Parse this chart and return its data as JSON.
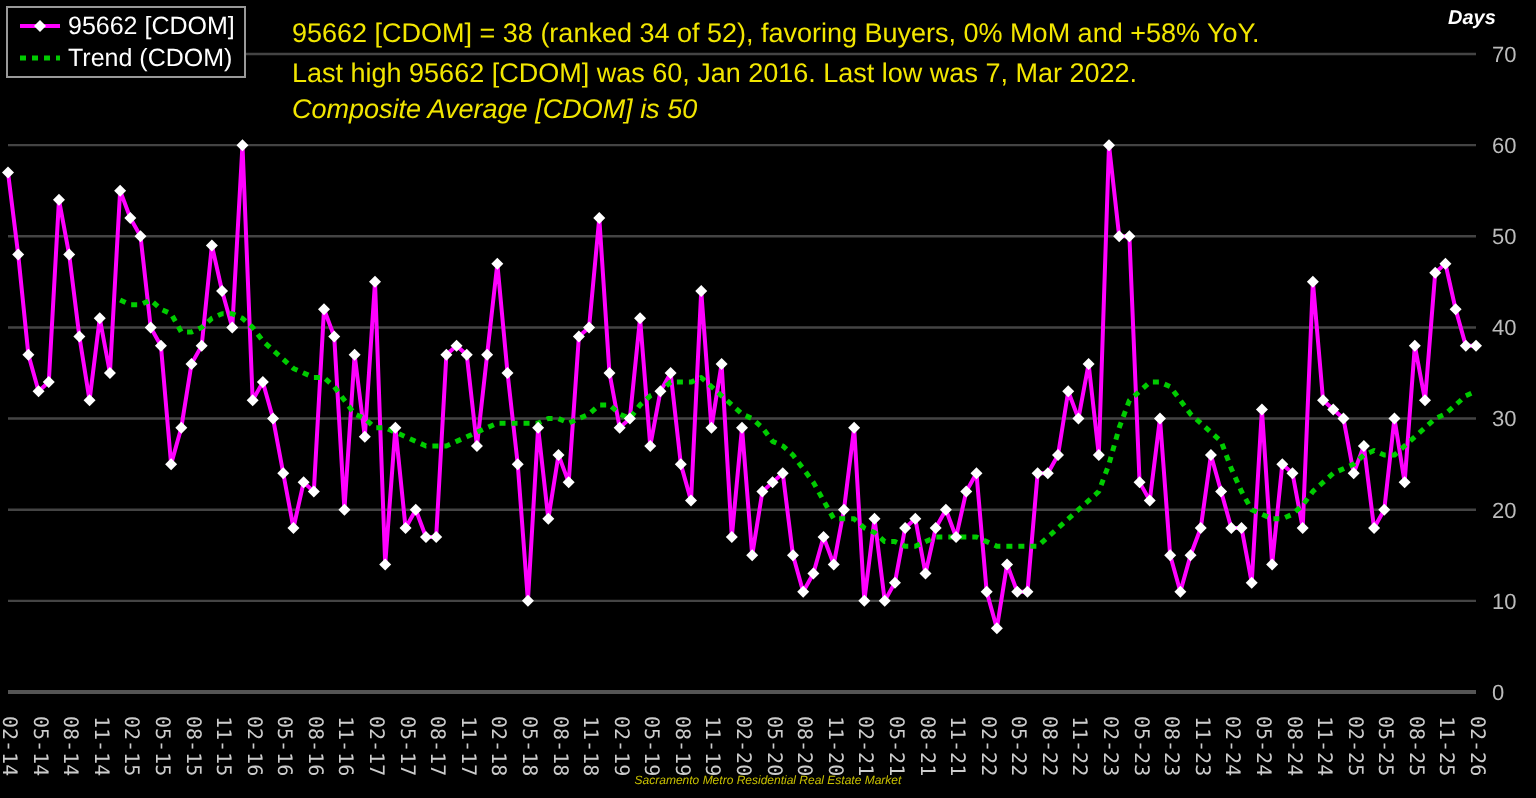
{
  "chart_data": {
    "type": "line",
    "title": "95662 [CDOM] = 38 (ranked 34 of 52), favoring Buyers, 0% MoM and +58% YoY.",
    "subtitle": "Last high 95662 [CDOM] was 60, Jan 2016. Last low was 7, Mar 2022.",
    "ylabel": "Days",
    "annotations": [
      "Composite Average [CDOM] is 50",
      "Sacramento Metro Residential Real Estate Market"
    ],
    "categories": [
      "02-14",
      null,
      null,
      "05-14",
      null,
      null,
      "08-14",
      null,
      null,
      "11-14",
      null,
      null,
      "02-15",
      null,
      null,
      "05-15",
      null,
      null,
      "08-15",
      null,
      null,
      "11-15",
      null,
      null,
      "02-16",
      null,
      null,
      "05-16",
      null,
      null,
      "08-16",
      null,
      null,
      "11-16",
      null,
      null,
      "02-17",
      null,
      null,
      "05-17",
      null,
      null,
      "08-17",
      null,
      null,
      "11-17",
      null,
      null,
      "02-18",
      null,
      null,
      "05-18",
      null,
      null,
      "08-18",
      null,
      null,
      "11-18",
      null,
      null,
      "02-19",
      null,
      null,
      "05-19",
      null,
      null,
      "08-19",
      null,
      null,
      "11-19",
      null,
      null,
      "02-20",
      null,
      null,
      "05-20",
      null,
      null,
      "08-20",
      null,
      null,
      "11-20",
      null,
      null,
      "02-21",
      null,
      null,
      "05-21",
      null,
      null,
      "08-21",
      null,
      null,
      "11-21",
      null,
      null,
      "02-22",
      null,
      null,
      "05-22",
      null,
      null,
      "08-22",
      null,
      null,
      "11-22",
      null,
      null,
      "02-23",
      null,
      null,
      "05-23",
      null,
      null,
      "08-23",
      null,
      null,
      "11-23",
      null,
      null,
      "02-24",
      null,
      null,
      "05-24",
      null,
      null,
      "08-24",
      null,
      null,
      "11-24",
      null,
      null,
      "02-25",
      null,
      null,
      "05-25",
      null,
      null,
      "08-25",
      null,
      null,
      "11-25",
      null,
      null,
      "02-26"
    ],
    "series": [
      {
        "name": "95662 [CDOM]",
        "color": "#ff00ff",
        "marker": "diamond",
        "line_style": "solid",
        "values": [
          57,
          48,
          37,
          33,
          34,
          54,
          48,
          39,
          32,
          41,
          35,
          55,
          52,
          50,
          40,
          38,
          25,
          29,
          36,
          38,
          49,
          44,
          40,
          60,
          32,
          34,
          30,
          24,
          18,
          23,
          22,
          42,
          39,
          20,
          37,
          28,
          45,
          14,
          29,
          18,
          20,
          17,
          17,
          37,
          38,
          37,
          27,
          37,
          47,
          35,
          25,
          10,
          29,
          19,
          26,
          23,
          39,
          40,
          52,
          35,
          29,
          30,
          41,
          27,
          33,
          35,
          25,
          21,
          44,
          29,
          36,
          17,
          29,
          15,
          22,
          23,
          24,
          15,
          11,
          13,
          17,
          14,
          20,
          29,
          10,
          19,
          10,
          12,
          18,
          19,
          13,
          18,
          20,
          17,
          22,
          24,
          11,
          7,
          14,
          11,
          11,
          24,
          24,
          26,
          33,
          30,
          36,
          26,
          60,
          50,
          50,
          23,
          21,
          30,
          15,
          11,
          15,
          18,
          26,
          22,
          18,
          18,
          12,
          31,
          14,
          25,
          24,
          18,
          45,
          32,
          31,
          30,
          24,
          27,
          18,
          20,
          30,
          23,
          38,
          32,
          46,
          47,
          42,
          38,
          38
        ]
      },
      {
        "name": "Trend (CDOM)",
        "color": "#00cc00",
        "marker": "none",
        "line_style": "dotted",
        "values": [
          null,
          null,
          null,
          null,
          null,
          null,
          null,
          null,
          null,
          null,
          null,
          43,
          42.5,
          42.5,
          43,
          42,
          41.5,
          39.5,
          39.5,
          40,
          41,
          41.5,
          41.5,
          41,
          40,
          38.5,
          37.5,
          36.5,
          35.5,
          35,
          34.5,
          34.5,
          33.5,
          32,
          30.5,
          30,
          29,
          29,
          28.5,
          28,
          27.5,
          27,
          27,
          27,
          27.5,
          28,
          28.5,
          29,
          29.5,
          29.5,
          29.5,
          29.5,
          29.5,
          30,
          30,
          29.5,
          30,
          30.5,
          31.5,
          31.5,
          30.5,
          30,
          31.5,
          32.5,
          33,
          34,
          34,
          34,
          34.5,
          33.5,
          32.5,
          31.5,
          30.5,
          30,
          29,
          27.5,
          27,
          26,
          24.5,
          23,
          21,
          19,
          19,
          19,
          18,
          17.5,
          16.5,
          16.5,
          16,
          16,
          16.5,
          17,
          17,
          17,
          17,
          17,
          16.5,
          16,
          16,
          16,
          16,
          16,
          17,
          18,
          19,
          20,
          21,
          22,
          25,
          29,
          32,
          33,
          34,
          34,
          33.5,
          32,
          30.5,
          29.5,
          28.5,
          27.5,
          24.5,
          22,
          20,
          19.5,
          19,
          19,
          19.5,
          20.5,
          22,
          23,
          24,
          24.5,
          25,
          26,
          26.5,
          26,
          26,
          27,
          28,
          29,
          30,
          30.5,
          31.5,
          32.5,
          33
        ]
      }
    ],
    "ylim": [
      0,
      70
    ],
    "yticks": [
      0,
      10,
      20,
      30,
      40,
      50,
      60,
      70
    ],
    "grid": "y",
    "legend": "top left"
  }
}
